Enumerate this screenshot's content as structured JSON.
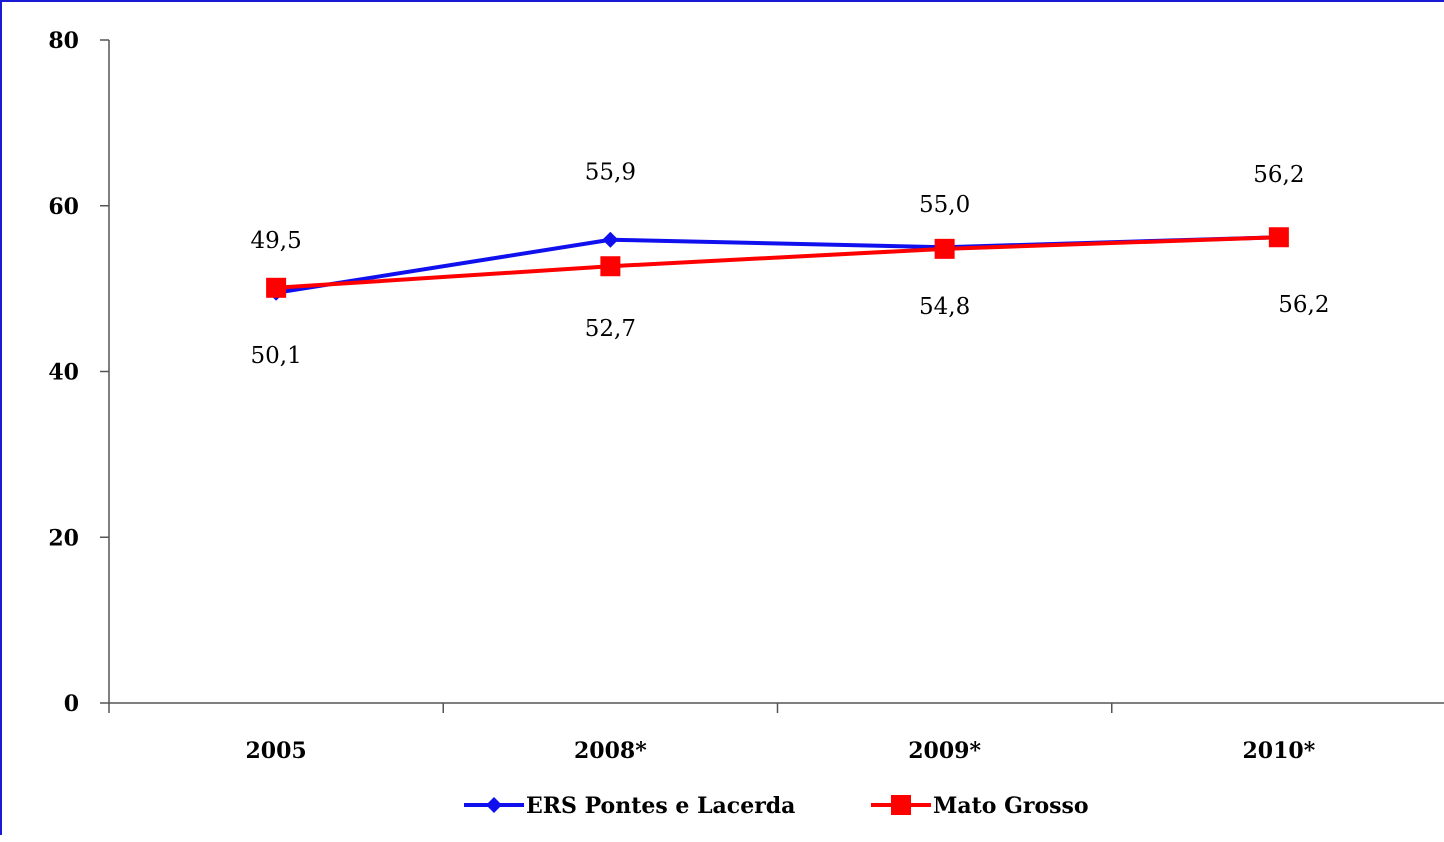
{
  "chart_data": {
    "type": "line",
    "title": "",
    "xlabel": "",
    "ylabel": "",
    "categories": [
      "2005",
      "2008*",
      "2009*",
      "2010*"
    ],
    "ylim": [
      0,
      80
    ],
    "yticks": [
      0,
      20,
      40,
      60,
      80
    ],
    "grid": false,
    "legend_position": "bottom",
    "series": [
      {
        "name": "ERS Pontes e Lacerda",
        "values": [
          49.5,
          55.9,
          55.0,
          56.2
        ],
        "labels": [
          "49,5",
          "55,9",
          "55,0",
          "56,2"
        ],
        "color": "#1010ee",
        "marker": "diamond"
      },
      {
        "name": "Mato Grosso",
        "values": [
          50.1,
          52.7,
          54.8,
          56.2
        ],
        "labels": [
          "50,1",
          "52,7",
          "54,8",
          "56,2"
        ],
        "color": "#ff0000",
        "marker": "square"
      }
    ]
  }
}
